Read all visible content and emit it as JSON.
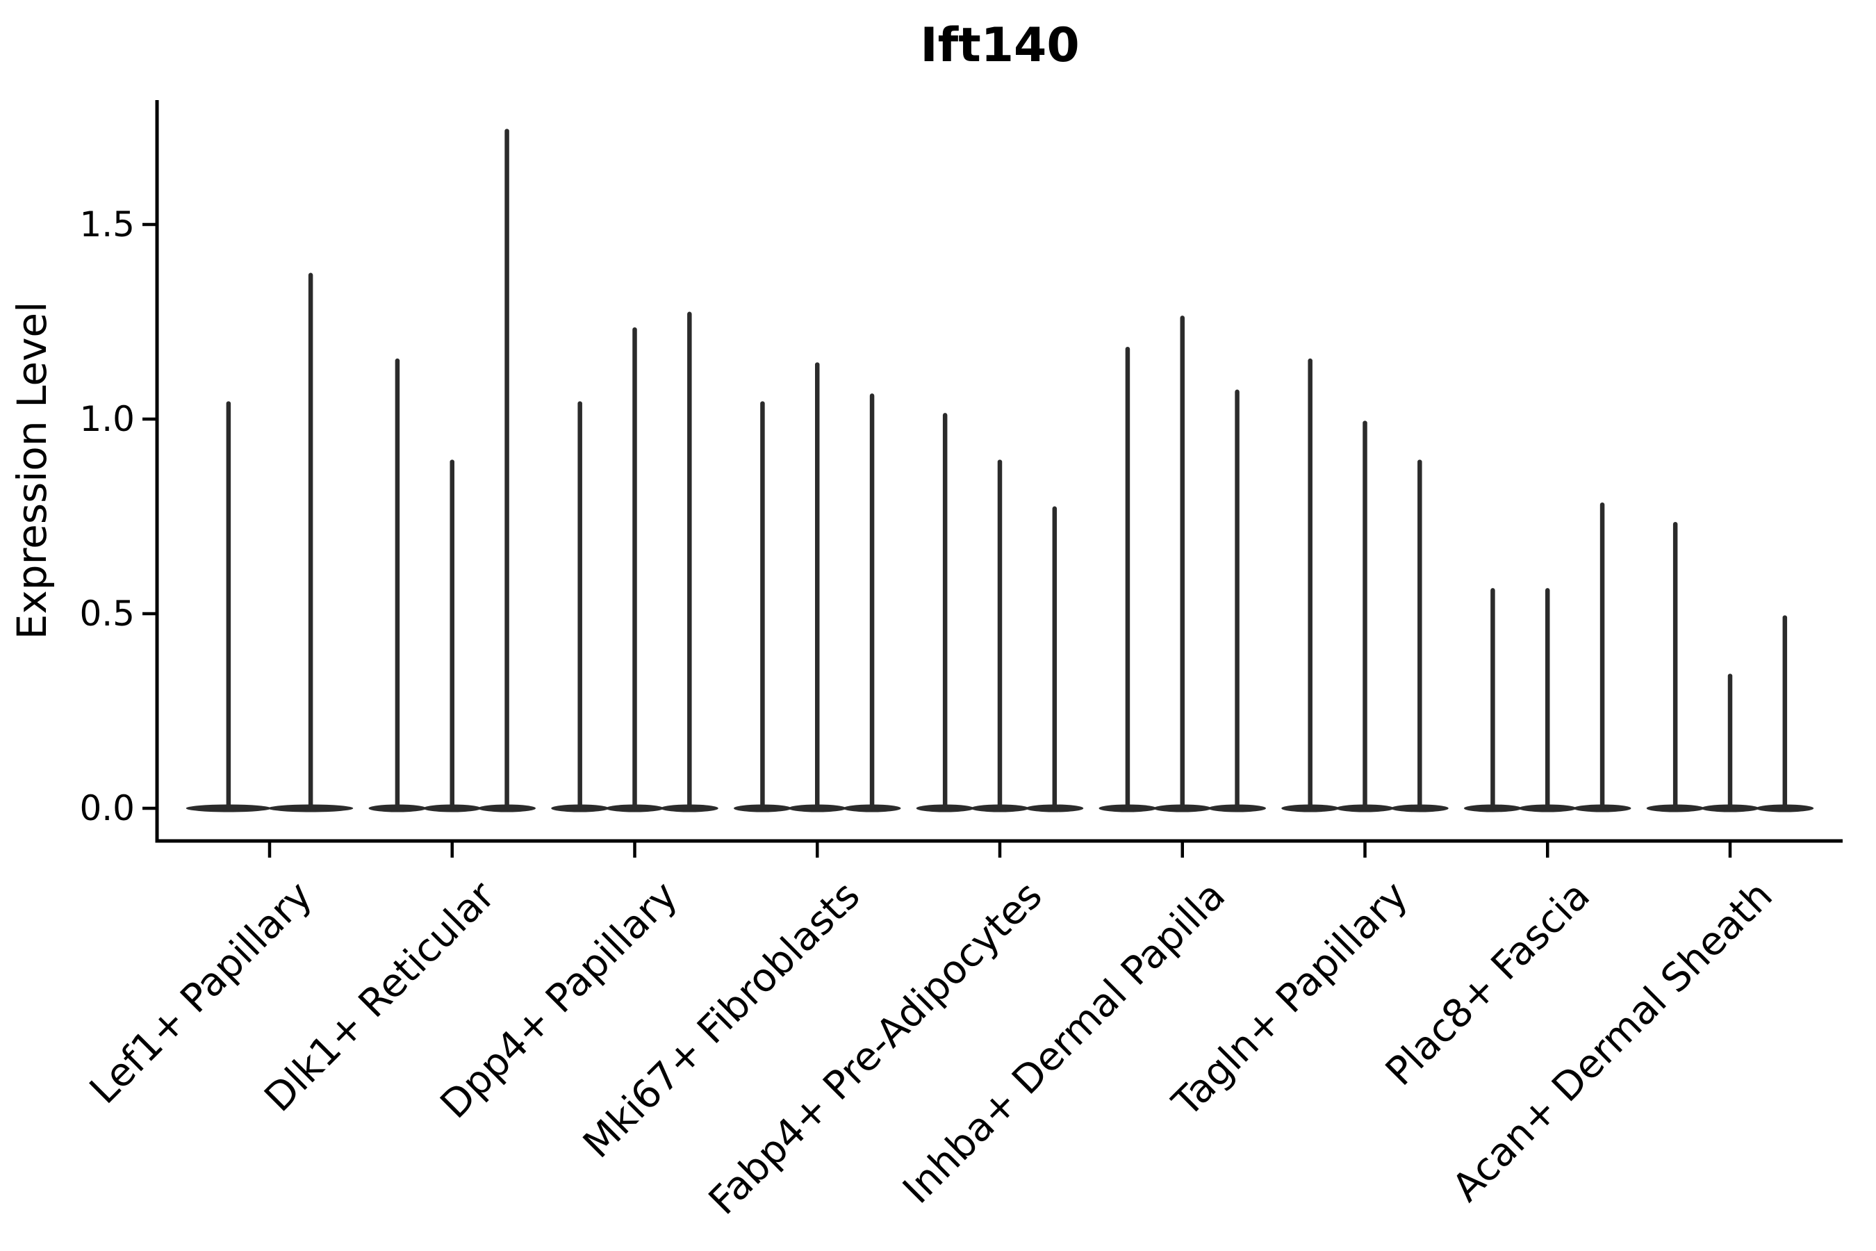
{
  "chart_data": {
    "type": "violin",
    "title": "Ift140",
    "xlabel": "",
    "ylabel": "Expression Level",
    "yticks": [
      0.0,
      0.5,
      1.0,
      1.5
    ],
    "ytick_labels": [
      "0.0",
      "0.5",
      "1.0",
      "1.5"
    ],
    "ylim": [
      -0.08,
      1.82
    ],
    "grid": false,
    "legend": "none",
    "violin_style": "wide flat base at zero with thin vertical density spike",
    "violin_color": "#2b2b2b",
    "axis_color": "#000000",
    "categories": [
      "Lef1+ Papillary",
      "Dlk1+ Reticular",
      "Dpp4+ Papillary",
      "Mki67+ Fibroblasts",
      "Fabp4+ Pre-Adipocytes",
      "Inhba+ Dermal Papilla",
      "Tagln+ Papillary",
      "Plac8+ Fascia",
      "Acan+ Dermal Sheath"
    ],
    "groups": [
      {
        "category": "Lef1+ Papillary",
        "violin_max_expression": [
          1.04,
          1.37
        ]
      },
      {
        "category": "Dlk1+ Reticular",
        "violin_max_expression": [
          1.15,
          0.89,
          1.74
        ]
      },
      {
        "category": "Dpp4+ Papillary",
        "violin_max_expression": [
          1.04,
          1.23,
          1.27
        ]
      },
      {
        "category": "Mki67+ Fibroblasts",
        "violin_max_expression": [
          1.04,
          1.14,
          1.06
        ]
      },
      {
        "category": "Fabp4+ Pre-Adipocytes",
        "violin_max_expression": [
          1.01,
          0.89,
          0.77
        ]
      },
      {
        "category": "Inhba+ Dermal Papilla",
        "violin_max_expression": [
          1.18,
          1.26,
          1.07
        ]
      },
      {
        "category": "Tagln+ Papillary",
        "violin_max_expression": [
          1.15,
          0.99,
          0.89
        ]
      },
      {
        "category": "Plac8+ Fascia",
        "violin_max_expression": [
          0.56,
          0.56,
          0.78
        ]
      },
      {
        "category": "Acan+ Dermal Sheath",
        "violin_max_expression": [
          0.73,
          0.34,
          0.49
        ]
      }
    ]
  }
}
